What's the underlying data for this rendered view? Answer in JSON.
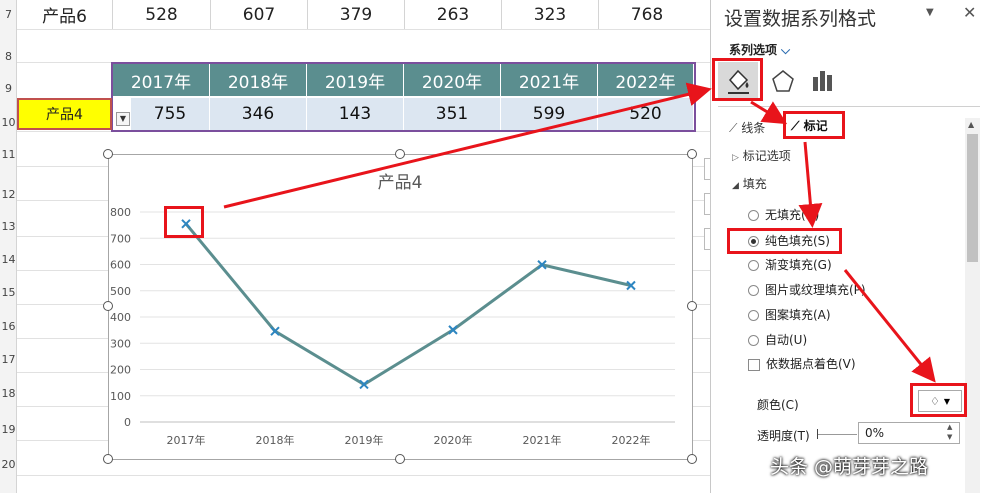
{
  "row_numbers": [
    "7",
    "8",
    "9",
    "10",
    "11",
    "12",
    "13",
    "14",
    "15",
    "16",
    "17",
    "18",
    "19",
    "20"
  ],
  "row6": {
    "label": "产品6",
    "values": [
      "528",
      "607",
      "379",
      "263",
      "323",
      "768"
    ]
  },
  "headers": [
    "2017年",
    "2018年",
    "2019年",
    "2020年",
    "2021年",
    "2022年"
  ],
  "row4": {
    "label": "产品4",
    "values": [
      "755",
      "346",
      "143",
      "351",
      "599",
      "520"
    ]
  },
  "chart_data": {
    "type": "line",
    "title": "产品4",
    "categories": [
      "2017年",
      "2018年",
      "2019年",
      "2020年",
      "2021年",
      "2022年"
    ],
    "series": [
      {
        "values": [
          755,
          346,
          143,
          351,
          599,
          520
        ]
      }
    ],
    "yticks": [
      "0",
      "100",
      "200",
      "300",
      "400",
      "500",
      "600",
      "700",
      "800"
    ],
    "ylim": [
      0,
      800
    ],
    "grid": true,
    "line_color": "#5b8e8f",
    "marker_color": "#2e86c1"
  },
  "pane": {
    "title": "设置数据系列格式",
    "series_options": "系列选项",
    "tab_line": "线条",
    "tab_marker": "标记",
    "marker_options": "标记选项",
    "fill": "填充",
    "options": [
      "无填充(N)",
      "纯色填充(S)",
      "渐变填充(G)",
      "图片或纹理填充(P)",
      "图案填充(A)",
      "自动(U)"
    ],
    "vary_colors": "依数据点着色(V)",
    "color_label": "颜色(C)",
    "transparency_label": "透明度(T)",
    "transparency_value": "0%"
  },
  "watermark": "头条 @萌芽芽之路",
  "colors": {
    "header": "#5b8e8f",
    "highlight": "#ffff00",
    "annotation": "#e8141b"
  }
}
